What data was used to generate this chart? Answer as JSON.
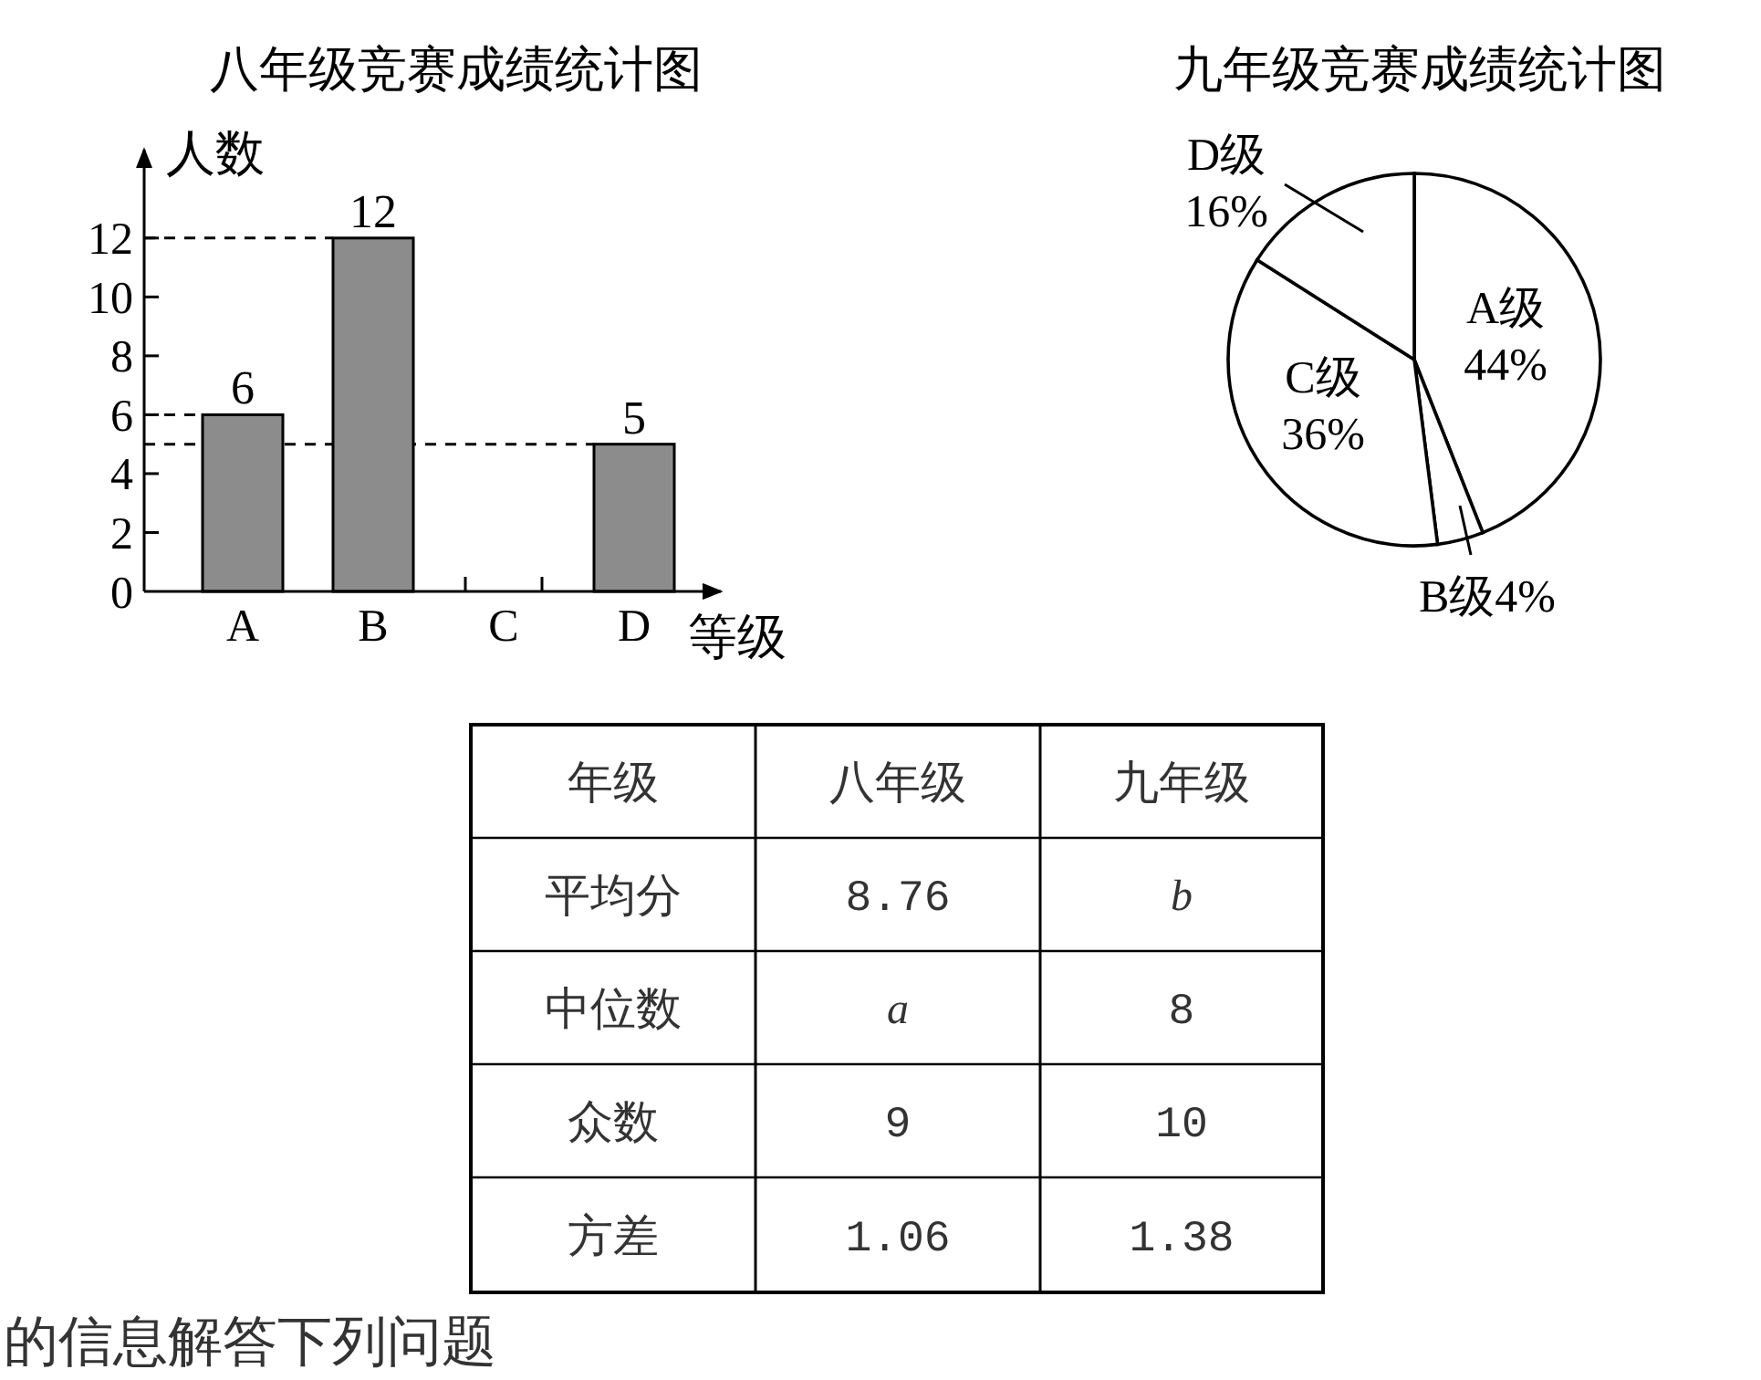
{
  "chart_data": [
    {
      "type": "bar",
      "title": "八年级竞赛成绩统计图",
      "xlabel": "等级",
      "ylabel": "人数",
      "categories": [
        "A",
        "B",
        "C",
        "D"
      ],
      "values": [
        6,
        12,
        0,
        5
      ],
      "color": "#8c8c8c",
      "value_labels": [
        "6",
        "12",
        null,
        "5"
      ],
      "ylim": [
        0,
        15
      ],
      "yticks": [
        0,
        2,
        4,
        6,
        8,
        10,
        12
      ],
      "ref_lines": [
        {
          "axis": "y",
          "value": 12,
          "line_style": "dashed"
        },
        {
          "axis": "y",
          "value": 6,
          "line_style": "dashed"
        },
        {
          "axis": "y",
          "value": 5,
          "line_style": "dashed"
        }
      ]
    },
    {
      "type": "pie",
      "title": "九年级竞赛成绩统计图",
      "categories": [
        "A级",
        "B级",
        "C级",
        "D级"
      ],
      "values": [
        44,
        4,
        36,
        16
      ],
      "colors": [
        "#ffffff",
        "#ffffff",
        "#ffffff",
        "#ffffff"
      ],
      "value_labels": [
        "44%",
        "4%",
        "36%",
        "16%"
      ]
    },
    {
      "type": "other",
      "categories": [
        "年级",
        "八年级",
        "九年级"
      ],
      "y_categories": [
        "平均分",
        "中位数",
        "众数",
        "方差"
      ],
      "cell_labels": [
        [
          "8.76",
          "b"
        ],
        [
          "a",
          "8"
        ],
        [
          "9",
          "10"
        ],
        [
          "1.06",
          "1.38"
        ]
      ],
      "annotations": [
        "的信息解答下列问题"
      ]
    }
  ]
}
